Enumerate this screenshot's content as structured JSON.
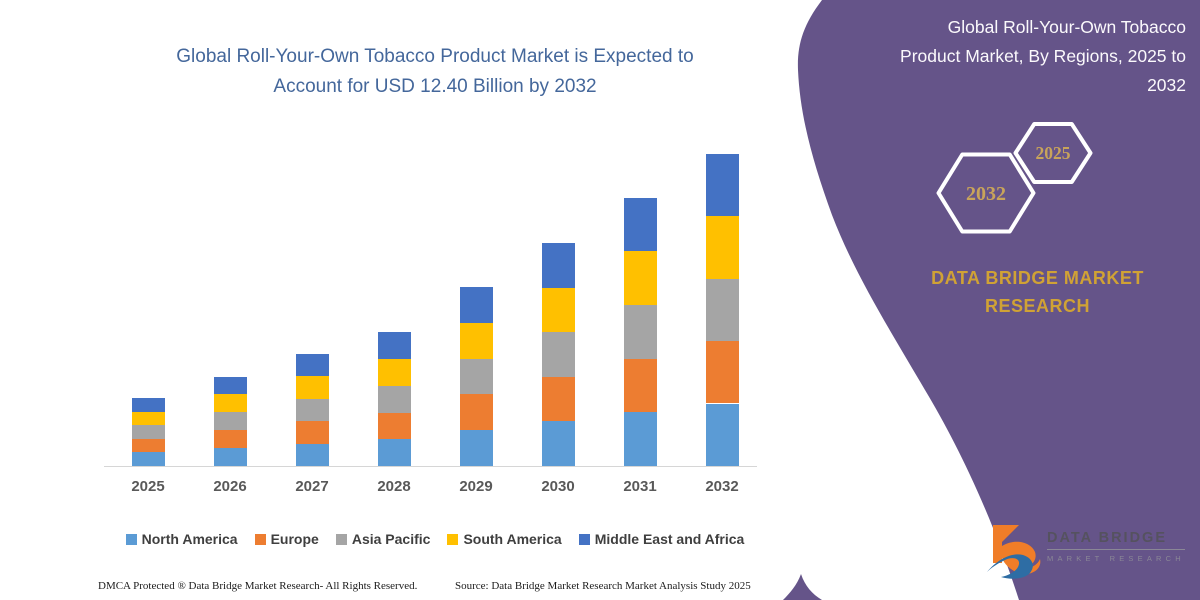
{
  "left_panel": {
    "title": "Global Roll-Your-Own Tobacco Product Market is Expected to\nAccount for USD 12.40 Billion by 2032",
    "footer_left": "DMCA Protected ® Data Bridge Market Research-  All Rights Reserved.",
    "footer_right": "Source: Data Bridge Market Research  Market Analysis Study 2025"
  },
  "right_panel": {
    "title": "Global Roll-Your-Own Tobacco\nProduct Market, By Regions, 2025 to\n2032",
    "hexagon_back_label": "2032",
    "hexagon_front_label": "2025",
    "brand_heading": "DATA BRIDGE MARKET\nRESEARCH",
    "logo_name": "DATA BRIDGE",
    "logo_subname": "MARKET RESEARCH",
    "background_color": "#655489",
    "accent_gold": "#D0A235",
    "hexagon_number_color": "#C9A45A"
  },
  "chart_data": {
    "type": "bar",
    "stacked": true,
    "title": "Global Roll-Your-Own Tobacco Product Market is Expected to Account for USD 12.40 Billion by 2032",
    "unit": "USD Billion",
    "categories": [
      "2025",
      "2026",
      "2027",
      "2028",
      "2029",
      "2030",
      "2031",
      "2032"
    ],
    "series": [
      {
        "name": "North America",
        "color": "#5B9BD5",
        "values": [
          0.54,
          0.71,
          0.89,
          1.06,
          1.42,
          1.77,
          2.13,
          2.48
        ]
      },
      {
        "name": "Europe",
        "color": "#ED7D31",
        "values": [
          0.54,
          0.71,
          0.89,
          1.06,
          1.42,
          1.77,
          2.13,
          2.48
        ]
      },
      {
        "name": "Asia Pacific",
        "color": "#A5A5A5",
        "values": [
          0.54,
          0.71,
          0.89,
          1.06,
          1.42,
          1.77,
          2.13,
          2.48
        ]
      },
      {
        "name": "South America",
        "color": "#FFC000",
        "values": [
          0.54,
          0.71,
          0.89,
          1.06,
          1.42,
          1.77,
          2.13,
          2.48
        ]
      },
      {
        "name": "Middle East and Africa",
        "color": "#4472C4",
        "values": [
          0.54,
          0.71,
          0.89,
          1.06,
          1.42,
          1.77,
          2.13,
          2.48
        ]
      }
    ],
    "totals": [
      2.7,
      3.55,
      4.45,
      5.3,
      7.1,
      8.85,
      10.65,
      12.4
    ],
    "ylim": [
      0,
      12.4
    ],
    "grid": false,
    "y_axis_visible": false,
    "legend_position": "bottom"
  }
}
